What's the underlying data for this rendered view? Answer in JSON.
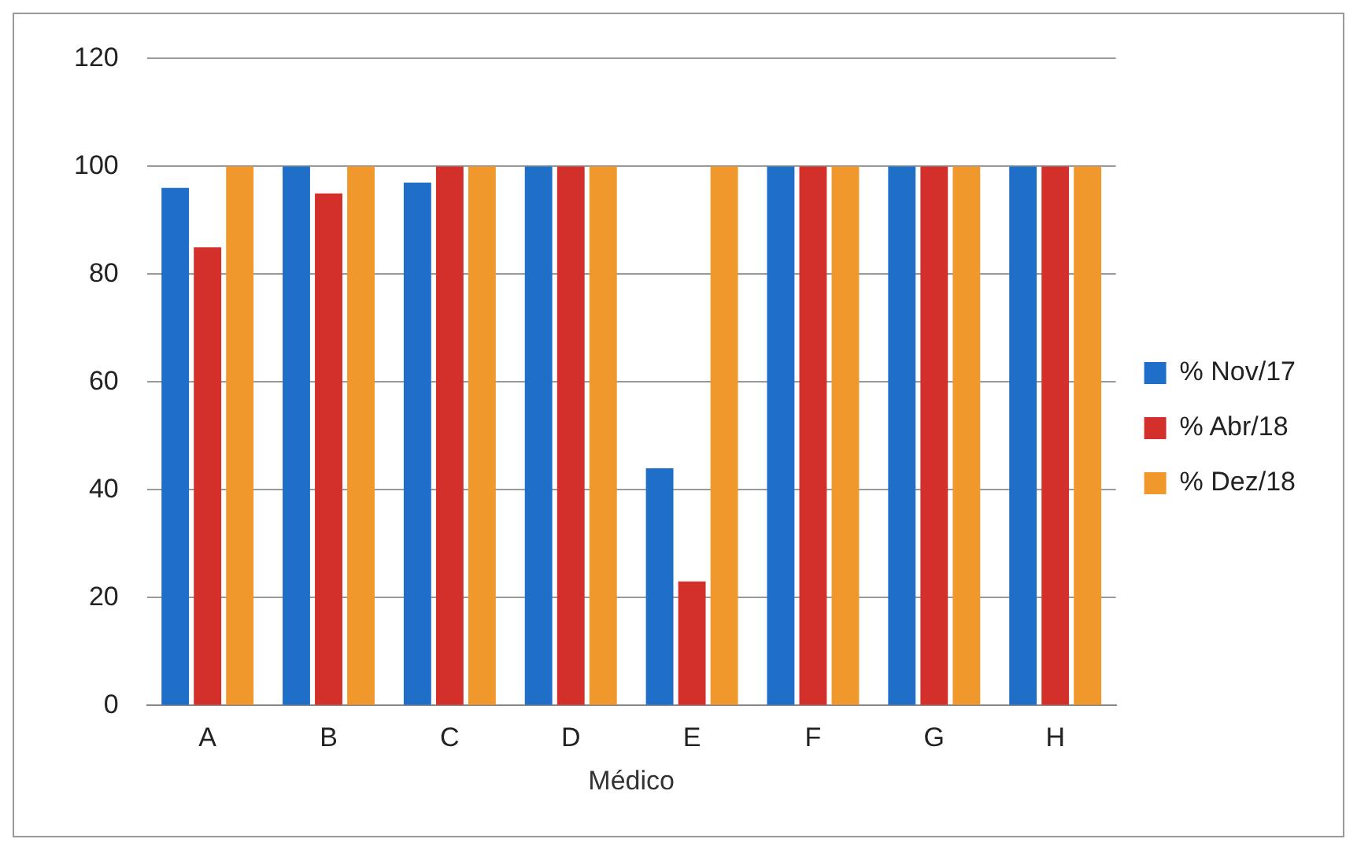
{
  "chart_data": {
    "type": "bar",
    "xlabel": "Médico",
    "categories": [
      "A",
      "B",
      "C",
      "D",
      "E",
      "F",
      "G",
      "H"
    ],
    "series": [
      {
        "name": "% Nov/17",
        "color": "#1f6fc8",
        "values": [
          96,
          100,
          97,
          100,
          44,
          100,
          100,
          100
        ]
      },
      {
        "name": "% Abr/18",
        "color": "#d3302b",
        "values": [
          85,
          95,
          100,
          100,
          23,
          100,
          100,
          100
        ]
      },
      {
        "name": "% Dez/18",
        "color": "#f0982c",
        "values": [
          100,
          100,
          100,
          100,
          100,
          100,
          100,
          100
        ]
      }
    ],
    "ylim": [
      0,
      120
    ],
    "yticks": [
      0,
      20,
      40,
      60,
      80,
      100,
      120
    ],
    "grid": "y",
    "legend": "right"
  }
}
